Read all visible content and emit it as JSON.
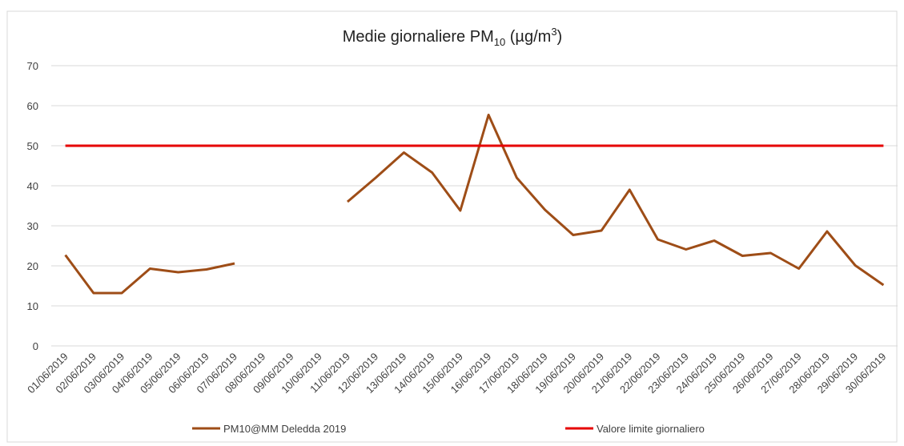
{
  "chart_data": {
    "type": "line",
    "title": [
      "Medie giornaliere PM",
      "10",
      " (µg/m",
      "3",
      ")"
    ],
    "categories": [
      "01/06/2019",
      "02/06/2019",
      "03/06/2019",
      "04/06/2019",
      "05/06/2019",
      "06/06/2019",
      "07/06/2019",
      "08/06/2019",
      "09/06/2019",
      "10/06/2019",
      "11/06/2019",
      "12/06/2019",
      "13/06/2019",
      "14/06/2019",
      "15/06/2019",
      "16/06/2019",
      "17/06/2019",
      "18/06/2019",
      "19/06/2019",
      "20/06/2019",
      "21/06/2019",
      "22/06/2019",
      "23/06/2019",
      "24/06/2019",
      "25/06/2019",
      "26/06/2019",
      "27/06/2019",
      "28/06/2019",
      "29/06/2019",
      "30/06/2019"
    ],
    "series": [
      {
        "name": "PM10@MM Deledda 2019",
        "color": "#9e4d17",
        "values": [
          22.7,
          13.2,
          13.2,
          19.3,
          18.4,
          19.1,
          20.6,
          null,
          null,
          null,
          36,
          42,
          48.3,
          43.3,
          33.8,
          57.7,
          42,
          34,
          27.7,
          28.8,
          39,
          26.6,
          24.1,
          26.3,
          22.5,
          23.2,
          19.3,
          28.6,
          20.1,
          15.2
        ]
      },
      {
        "name": "Valore limite giornaliero",
        "color": "#e60000",
        "values": [
          50,
          50,
          50,
          50,
          50,
          50,
          50,
          50,
          50,
          50,
          50,
          50,
          50,
          50,
          50,
          50,
          50,
          50,
          50,
          50,
          50,
          50,
          50,
          50,
          50,
          50,
          50,
          50,
          50,
          50
        ]
      }
    ],
    "ylim": [
      0,
      70
    ],
    "yticks": [
      0,
      10,
      20,
      30,
      40,
      50,
      60,
      70
    ],
    "grid": true
  }
}
